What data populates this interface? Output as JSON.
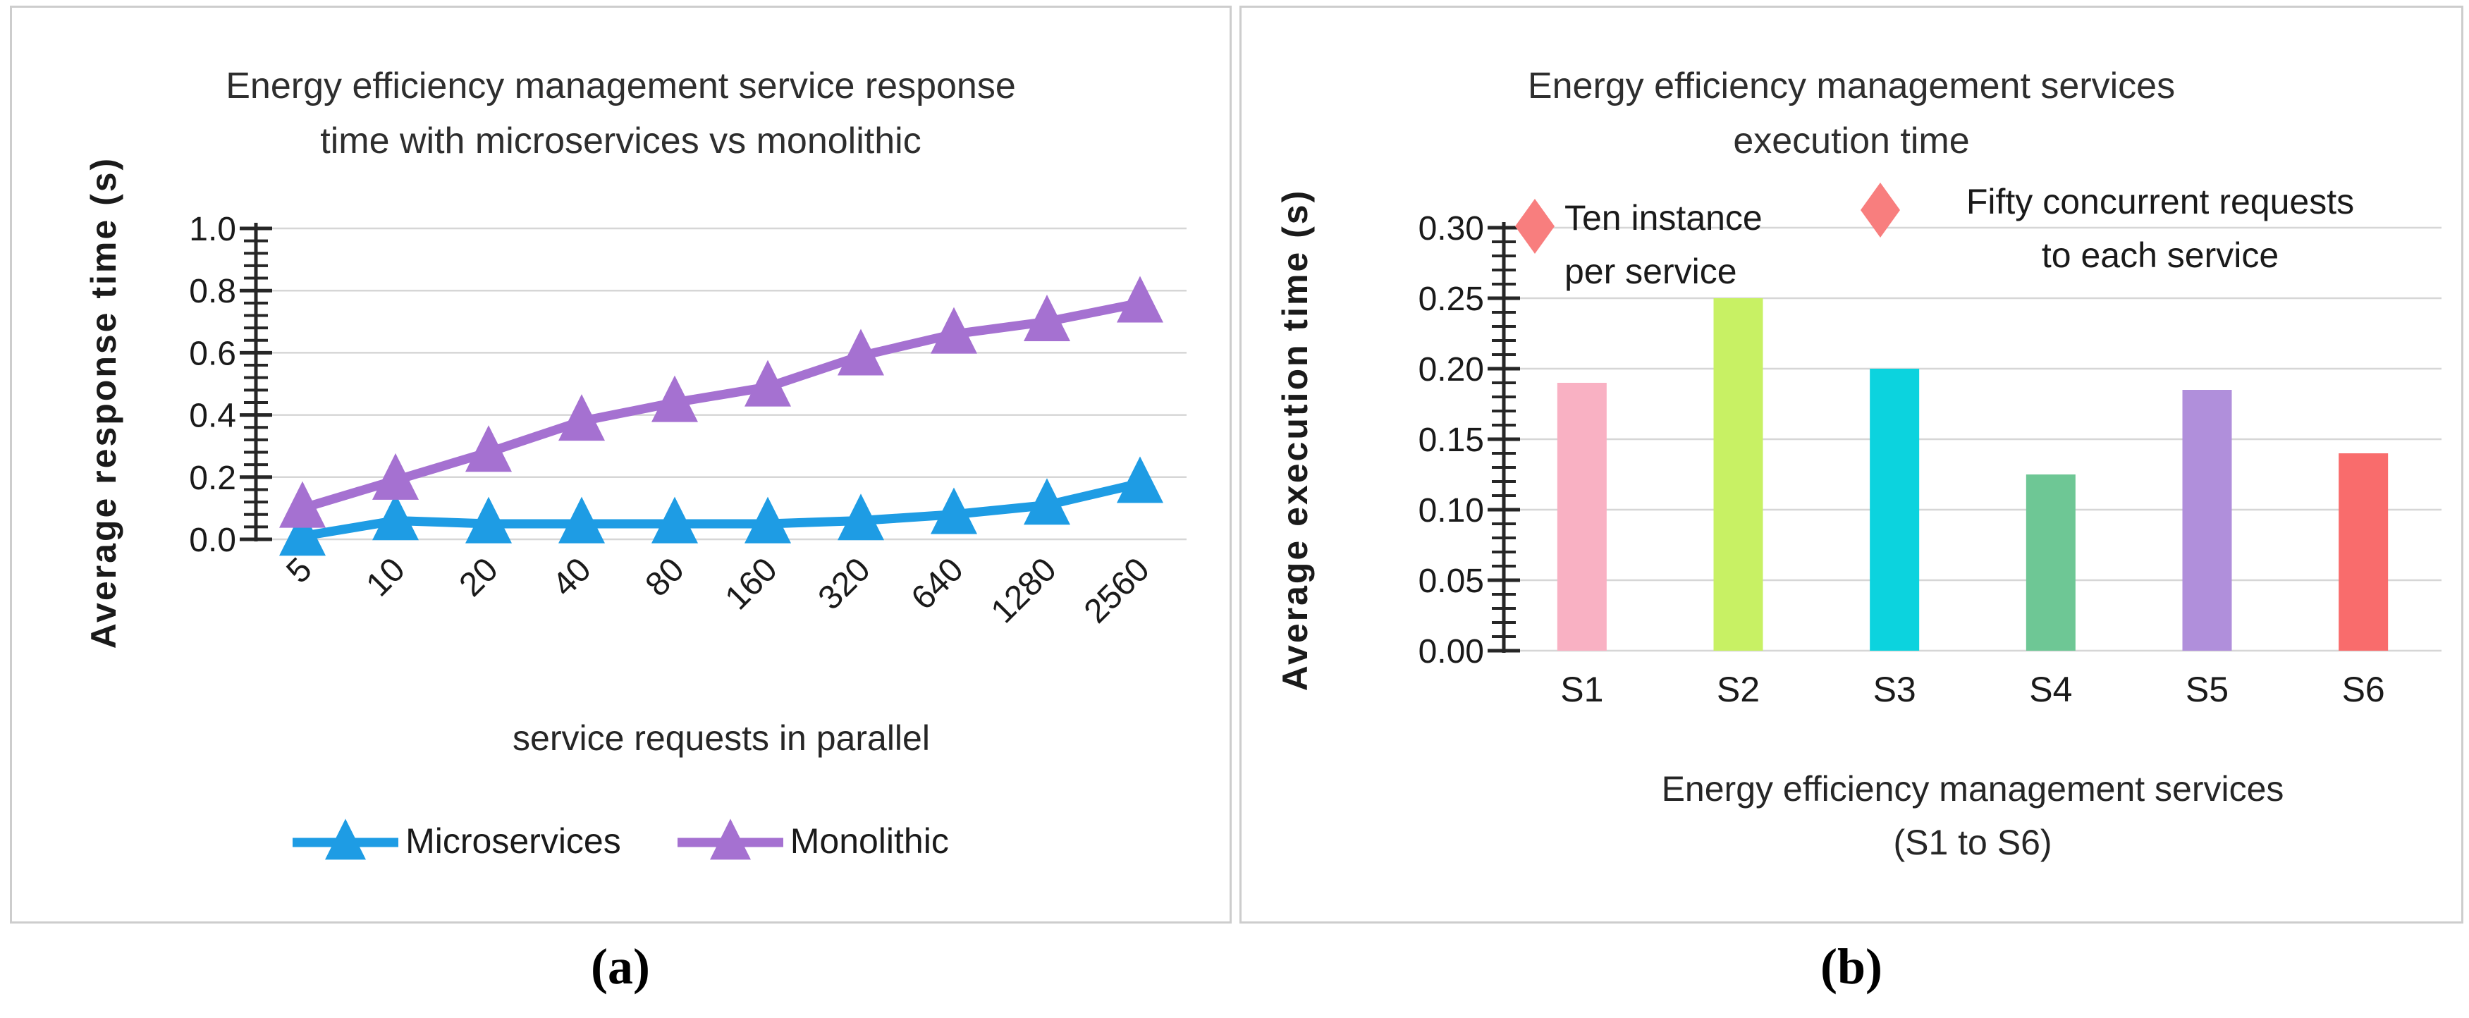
{
  "figure": {
    "captions": {
      "a": "(a)",
      "b": "(b)"
    }
  },
  "colors": {
    "panel_border": "#cdcdcd",
    "gridline": "#d6d6d6",
    "axis": "#262626",
    "tick_text": "#1a1a1a",
    "title_text": "#2e2e2e"
  },
  "panel_a": {
    "title_lines": [
      "Energy efficiency management service response",
      "time with microservices vs monolithic"
    ],
    "ylabel": "Average response time (s)",
    "xlabel": "service requests in parallel"
  },
  "panel_b": {
    "title_lines": [
      "Energy efficiency management services",
      "execution time"
    ],
    "ylabel": "Average execution time (s)",
    "xlabel_lines": [
      "Energy efficiency management services",
      "(S1 to S6)"
    ],
    "legend_items": [
      {
        "lines": [
          "Ten instance",
          "per service"
        ]
      },
      {
        "lines": [
          "Fifty concurrent requests",
          "to each service"
        ]
      }
    ]
  },
  "chart_data": [
    {
      "type": "line",
      "title": "Energy efficiency management service response time with microservices vs monolithic",
      "categories": [
        "5",
        "10",
        "20",
        "40",
        "80",
        "160",
        "320",
        "640",
        "1280",
        "2560"
      ],
      "series": [
        {
          "name": "Microservices",
          "color": "#1e9ce4",
          "values": [
            0.01,
            0.06,
            0.05,
            0.05,
            0.05,
            0.05,
            0.06,
            0.08,
            0.11,
            0.18
          ]
        },
        {
          "name": "Monolithic",
          "color": "#a571d1",
          "values": [
            0.1,
            0.19,
            0.28,
            0.38,
            0.44,
            0.49,
            0.59,
            0.66,
            0.7,
            0.76
          ]
        }
      ],
      "xlabel": "service requests in parallel",
      "ylabel": "Average response time (s)",
      "ylim": [
        0.0,
        1.0
      ],
      "ytick_step": 0.2,
      "ytick_minor_step": 0.04,
      "ytick_decimals": 1,
      "grid": true,
      "legend_position": "bottom",
      "marker": "triangle"
    },
    {
      "type": "bar",
      "title": "Energy efficiency management services execution time",
      "categories": [
        "S1",
        "S2",
        "S3",
        "S4",
        "S5",
        "S6"
      ],
      "values": [
        0.19,
        0.25,
        0.2,
        0.125,
        0.185,
        0.14
      ],
      "bar_colors": [
        "#f9b1c3",
        "#c8f164",
        "#0cd3de",
        "#6ec795",
        "#b08fdb",
        "#f96c6c"
      ],
      "xlabel": "Energy efficiency management services (S1 to S6)",
      "ylabel": "Average execution time (s)",
      "ylim": [
        0.0,
        0.3
      ],
      "ytick_step": 0.05,
      "ytick_minor_step": 0.01,
      "ytick_decimals": 2,
      "grid": true,
      "legend": [
        "Ten instance per service",
        "Fifty concurrent requests to each service"
      ],
      "legend_marker": "diamond",
      "legend_marker_color": "#f87e7e",
      "legend_position": "top-inside"
    }
  ]
}
